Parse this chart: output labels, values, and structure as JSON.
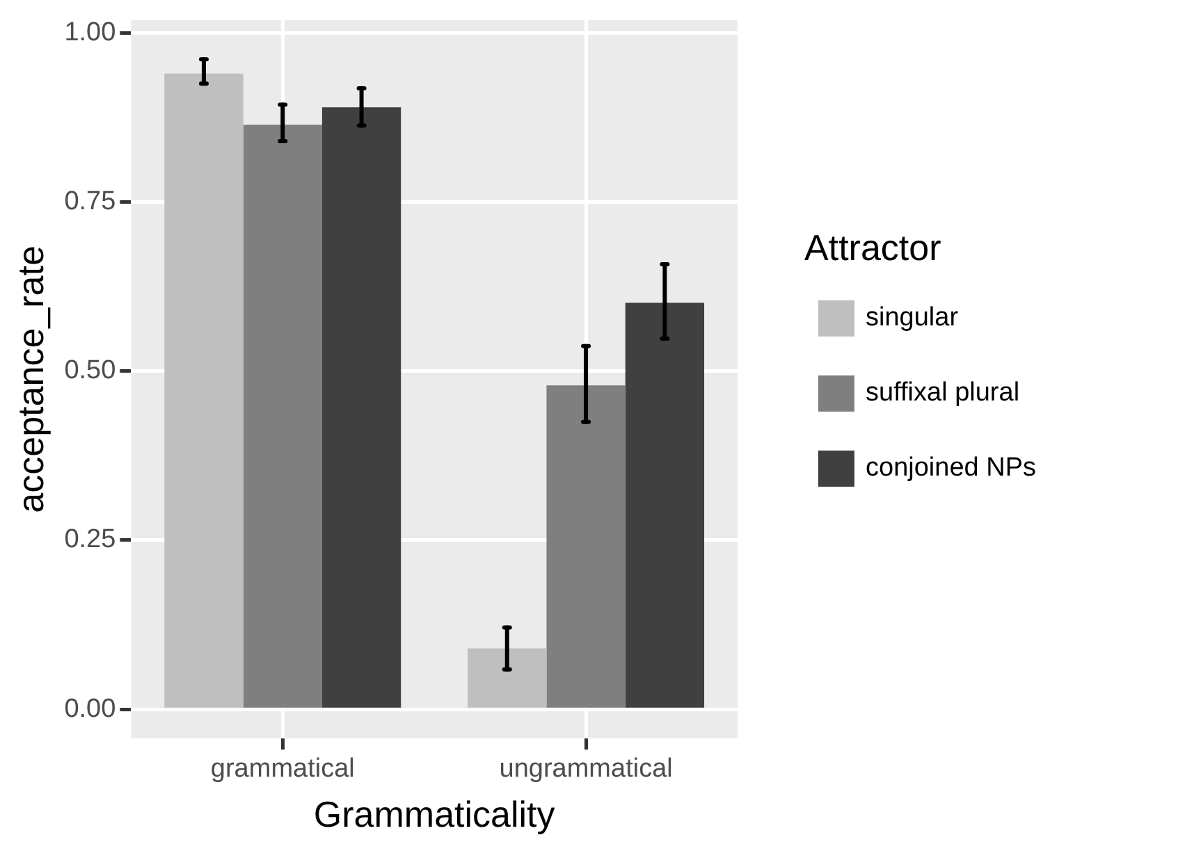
{
  "chart_data": {
    "type": "bar",
    "xlabel": "Grammaticality",
    "ylabel": "acceptance_rate",
    "legend_title": "Attractor",
    "categories": [
      "grammatical",
      "ungrammatical"
    ],
    "series": [
      {
        "name": "singular",
        "color": "#bfbfbf",
        "values": [
          0.94,
          0.09
        ],
        "errors": [
          [
            0.925,
            0.961
          ],
          [
            0.059,
            0.121
          ]
        ]
      },
      {
        "name": "suffixal plural",
        "color": "#7f7f7f",
        "values": [
          0.864,
          0.479
        ],
        "errors": [
          [
            0.84,
            0.894
          ],
          [
            0.425,
            0.537
          ]
        ]
      },
      {
        "name": "conjoined NPs",
        "color": "#404040",
        "values": [
          0.89,
          0.601
        ],
        "errors": [
          [
            0.863,
            0.918
          ],
          [
            0.548,
            0.658
          ]
        ]
      }
    ],
    "ylim": [
      -0.043,
      1.019
    ],
    "yticks": [
      {
        "value": 0,
        "label": "0.00"
      },
      {
        "value": 0.25,
        "label": "0.25"
      },
      {
        "value": 0.5,
        "label": "0.50"
      },
      {
        "value": 0.75,
        "label": "0.75"
      },
      {
        "value": 1,
        "label": "1.00"
      }
    ],
    "grid": true,
    "legend": "right"
  }
}
